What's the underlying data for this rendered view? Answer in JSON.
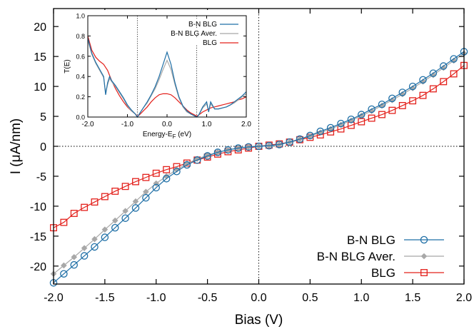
{
  "chart_data": [
    {
      "type": "line",
      "title": "",
      "xlabel": "Bias (V)",
      "ylabel": "I (μA/nm)",
      "xlim": [
        -2.0,
        2.0
      ],
      "ylim": [
        -23,
        23
      ],
      "xticks": [
        -2.0,
        -1.5,
        -1.0,
        -0.5,
        0.0,
        0.5,
        1.0,
        1.5,
        2.0
      ],
      "xtick_labels": [
        "-2.0",
        "-1.5",
        "-1.0",
        "-0.5",
        "0.0",
        "0.5",
        "1.0",
        "1.5",
        "2.0"
      ],
      "yticks": [
        -20,
        -15,
        -10,
        -5,
        0,
        5,
        10,
        15,
        20
      ],
      "ytick_labels": [
        "-20",
        "-15",
        "-10",
        "-5",
        "0",
        "5",
        "10",
        "15",
        "20"
      ],
      "grid": false,
      "reference_lines": {
        "x": 0,
        "y": 0,
        "style": "dotted"
      },
      "legend_position": "bottom-right",
      "x": [
        -2.0,
        -1.9,
        -1.8,
        -1.7,
        -1.6,
        -1.5,
        -1.4,
        -1.3,
        -1.2,
        -1.1,
        -1.0,
        -0.9,
        -0.8,
        -0.7,
        -0.6,
        -0.5,
        -0.4,
        -0.3,
        -0.2,
        -0.1,
        0.0,
        0.1,
        0.2,
        0.3,
        0.4,
        0.5,
        0.6,
        0.7,
        0.8,
        0.9,
        1.0,
        1.1,
        1.2,
        1.3,
        1.4,
        1.5,
        1.6,
        1.7,
        1.8,
        1.9,
        2.0
      ],
      "series": [
        {
          "name": "B-N BLG",
          "color": "#1f6fa6",
          "marker": "open-circle",
          "values": [
            -22.8,
            -21.3,
            -19.8,
            -18.3,
            -16.8,
            -15.2,
            -13.6,
            -12.0,
            -10.3,
            -8.6,
            -6.9,
            -5.4,
            -4.2,
            -3.1,
            -2.3,
            -1.6,
            -1.0,
            -0.6,
            -0.3,
            -0.1,
            0.0,
            0.1,
            0.3,
            0.7,
            1.2,
            1.8,
            2.5,
            3.1,
            3.8,
            4.5,
            5.3,
            6.2,
            7.0,
            8.0,
            9.0,
            10.0,
            11.1,
            12.2,
            13.4,
            14.6,
            15.8
          ]
        },
        {
          "name": "B-N BLG Aver.",
          "color": "#a8a8a8",
          "marker": "filled-diamond",
          "values": [
            -21.3,
            -19.9,
            -18.5,
            -17.0,
            -15.5,
            -13.9,
            -12.4,
            -10.8,
            -9.2,
            -7.6,
            -6.2,
            -5.0,
            -3.9,
            -2.9,
            -2.1,
            -1.5,
            -1.0,
            -0.6,
            -0.3,
            -0.1,
            0.0,
            0.1,
            0.3,
            0.7,
            1.2,
            1.7,
            2.3,
            2.9,
            3.6,
            4.3,
            5.1,
            5.9,
            6.8,
            7.7,
            8.7,
            9.7,
            10.8,
            11.9,
            13.1,
            14.3,
            15.5
          ]
        },
        {
          "name": "BLG",
          "color": "#e3201b",
          "marker": "open-square",
          "values": [
            -13.6,
            -12.7,
            -11.2,
            -10.2,
            -9.3,
            -8.4,
            -7.5,
            -6.7,
            -5.9,
            -5.2,
            -4.5,
            -3.9,
            -3.4,
            -2.8,
            -2.3,
            -1.8,
            -1.3,
            -0.9,
            -0.6,
            -0.3,
            0.0,
            0.2,
            0.4,
            0.7,
            1.1,
            1.5,
            1.9,
            2.4,
            2.9,
            3.5,
            4.1,
            4.7,
            5.3,
            6.0,
            6.8,
            7.6,
            8.5,
            9.6,
            10.8,
            12.1,
            13.5
          ]
        }
      ]
    },
    {
      "type": "line",
      "title": "",
      "xlabel_main": "Energy-E",
      "xlabel_sub": "F",
      "xlabel_unit": " (eV)",
      "ylabel": "T(E)",
      "xlim": [
        -2.0,
        2.0
      ],
      "ylim": [
        0.0,
        1.0
      ],
      "xticks": [
        -2.0,
        -1.0,
        0.0,
        1.0,
        2.0
      ],
      "xtick_labels": [
        "-2.0",
        "-1.0",
        "0.0",
        "1.0",
        "2.0"
      ],
      "yticks": [
        0.0,
        0.2,
        0.4,
        0.6,
        0.8,
        1.0
      ],
      "ytick_labels": [
        "0.0",
        "0.2",
        "0.4",
        "0.6",
        "0.8",
        "1.0"
      ],
      "grid": false,
      "reference_lines": {
        "x": [
          -0.75,
          0.75
        ],
        "style": "dotted"
      },
      "legend_position": "top-right",
      "x": [
        -2.0,
        -1.9,
        -1.8,
        -1.7,
        -1.6,
        -1.55,
        -1.5,
        -1.45,
        -1.4,
        -1.3,
        -1.2,
        -1.1,
        -1.0,
        -0.9,
        -0.8,
        -0.75,
        -0.7,
        -0.6,
        -0.5,
        -0.4,
        -0.3,
        -0.2,
        -0.1,
        0.0,
        0.1,
        0.2,
        0.3,
        0.4,
        0.5,
        0.6,
        0.7,
        0.75,
        0.8,
        0.9,
        1.0,
        1.05,
        1.1,
        1.2,
        1.3,
        1.4,
        1.5,
        1.6,
        1.7,
        1.8,
        1.9,
        2.0
      ],
      "series": [
        {
          "name": "B-N BLG",
          "color": "#1f6fa6",
          "values": [
            0.78,
            0.63,
            0.54,
            0.47,
            0.4,
            0.22,
            0.34,
            0.4,
            0.36,
            0.31,
            0.25,
            0.19,
            0.12,
            0.07,
            0.03,
            0.0,
            0.03,
            0.09,
            0.15,
            0.22,
            0.3,
            0.4,
            0.52,
            0.64,
            0.52,
            0.34,
            0.2,
            0.11,
            0.06,
            0.03,
            0.01,
            0.0,
            0.02,
            0.1,
            0.15,
            0.05,
            0.15,
            0.08,
            0.08,
            0.09,
            0.1,
            0.12,
            0.15,
            0.18,
            0.21,
            0.25
          ]
        },
        {
          "name": "B-N BLG Aver.",
          "color": "#a8a8a8",
          "values": [
            0.76,
            0.62,
            0.53,
            0.46,
            0.39,
            0.24,
            0.32,
            0.38,
            0.35,
            0.3,
            0.24,
            0.18,
            0.11,
            0.06,
            0.03,
            0.0,
            0.03,
            0.09,
            0.14,
            0.21,
            0.28,
            0.37,
            0.47,
            0.56,
            0.47,
            0.32,
            0.19,
            0.1,
            0.05,
            0.03,
            0.01,
            0.0,
            0.02,
            0.09,
            0.13,
            0.06,
            0.13,
            0.08,
            0.08,
            0.09,
            0.1,
            0.12,
            0.14,
            0.17,
            0.2,
            0.23
          ]
        },
        {
          "name": "BLG",
          "color": "#e3201b",
          "values": [
            0.8,
            0.66,
            0.59,
            0.55,
            0.52,
            0.49,
            0.46,
            0.41,
            0.36,
            0.28,
            0.21,
            0.15,
            0.1,
            0.06,
            0.03,
            0.01,
            0.02,
            0.06,
            0.1,
            0.15,
            0.19,
            0.22,
            0.23,
            0.23,
            0.22,
            0.19,
            0.15,
            0.11,
            0.07,
            0.04,
            0.02,
            0.01,
            0.02,
            0.05,
            0.07,
            0.08,
            0.09,
            0.1,
            0.11,
            0.12,
            0.13,
            0.14,
            0.15,
            0.17,
            0.18,
            0.2
          ]
        }
      ]
    }
  ]
}
